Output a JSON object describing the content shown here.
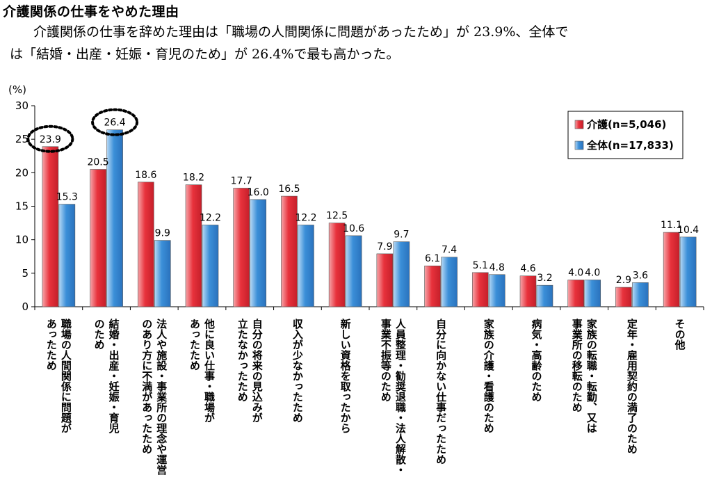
{
  "heading": "介護関係の仕事をやめた理由",
  "summary": {
    "line1": "介護関係の仕事を辞めた理由は「職場の人間関係に問題があったため」が 23.9%、全体で",
    "line2": "は「結婚・出産・妊娠・育児のため」が 26.4%で最も高かった。"
  },
  "chart_data": {
    "type": "bar",
    "ylabel": "(%)",
    "ylim": [
      0,
      30
    ],
    "yticks": [
      0,
      5,
      10,
      15,
      20,
      25,
      30
    ],
    "grid": false,
    "legend_position": "top-right",
    "categories": [
      [
        "職場の人間関係に問題が",
        "あったため"
      ],
      [
        "結婚・出産・妊娠・育児",
        "のため"
      ],
      [
        "法人や施設・事業所の理念や運営",
        "のあり方に不満があったため"
      ],
      [
        "他に良い仕事・職場が",
        "あったため"
      ],
      [
        "自分の将来の見込みが",
        "立たなかったため"
      ],
      [
        "収入が少なかったため"
      ],
      [
        "新しい資格を取ったから"
      ],
      [
        "人員整理・勧奨退職・法人解散・",
        "事業不振等のため"
      ],
      [
        "自分に向かない仕事だったため"
      ],
      [
        "家族の介護・看護のため"
      ],
      [
        "病気・高齢のため"
      ],
      [
        "家族の転職・転勤、又は",
        "事業所の移転のため"
      ],
      [
        "定年・雇用契約の満了のため"
      ],
      [
        "その他"
      ]
    ],
    "series": [
      {
        "name": "介護(n=5,046)",
        "color": "#e8323c",
        "values": [
          23.9,
          20.5,
          18.6,
          18.2,
          17.7,
          16.5,
          12.5,
          7.9,
          6.1,
          5.1,
          4.6,
          4.0,
          2.9,
          11.1
        ]
      },
      {
        "name": "全体(n=17,833)",
        "color": "#3b8fd8",
        "values": [
          15.3,
          26.4,
          9.9,
          12.2,
          16.0,
          12.2,
          10.6,
          9.7,
          7.4,
          4.8,
          3.2,
          4.0,
          3.6,
          10.4
        ]
      }
    ],
    "annotations": [
      {
        "text": "23.9",
        "series": 0,
        "category": 0,
        "style": "dotted-circle"
      },
      {
        "text": "26.4",
        "series": 1,
        "category": 1,
        "style": "dotted-circle"
      }
    ]
  }
}
